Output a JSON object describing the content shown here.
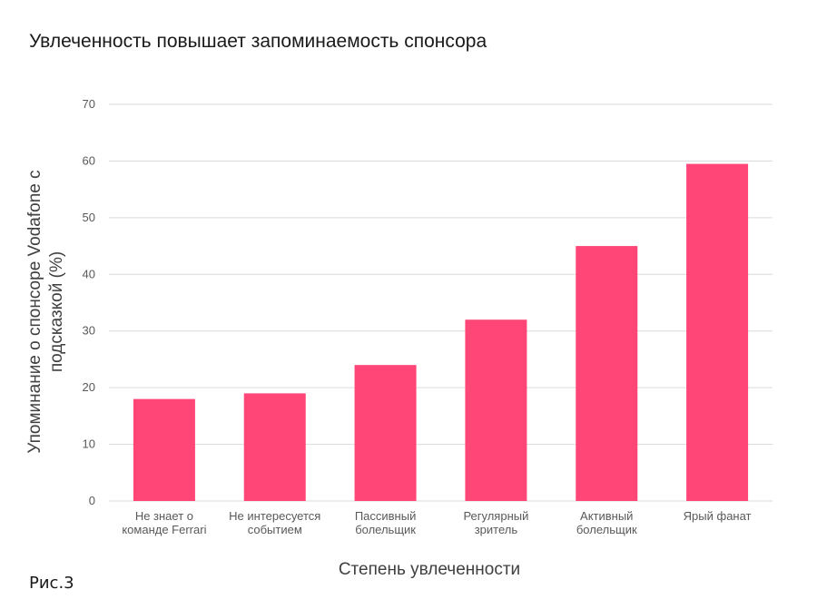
{
  "figure_caption": "Рис.3",
  "chart_data": {
    "type": "bar",
    "title": "Увлеченность повышает запоминаемость спонсора",
    "xlabel": "Степень увлеченности",
    "ylabel": [
      "Упоминание о спонсоре Vodafone с",
      "подсказкой (%)"
    ],
    "categories": [
      [
        "Не знает о",
        "команде Ferrari"
      ],
      [
        "Не интересуется",
        "событием"
      ],
      [
        "Пассивный",
        "болельщик"
      ],
      [
        "Регулярный",
        "зритель"
      ],
      [
        "Активный",
        "болельщик"
      ],
      [
        "Ярый фанат"
      ]
    ],
    "values": [
      18,
      19,
      24,
      32,
      45,
      59.5
    ],
    "ylim": [
      0,
      70
    ],
    "yticks": [
      0,
      10,
      20,
      30,
      40,
      50,
      60,
      70
    ],
    "grid": true,
    "colors": {
      "bar": "#ff4677",
      "grid": "#d9d9d9",
      "tick_text": "#595959",
      "axis_title": "#404040"
    }
  }
}
